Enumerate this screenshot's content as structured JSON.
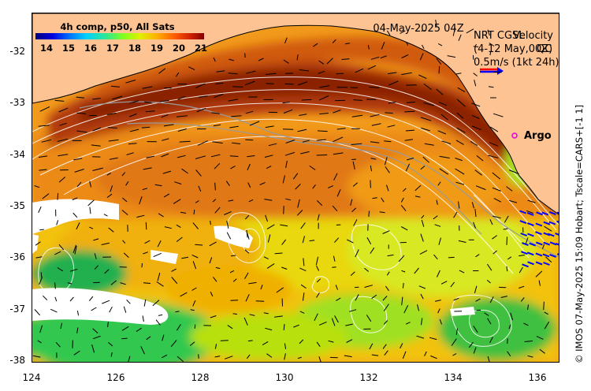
{
  "map": {
    "date_stamp": "04-May-2025 04Z",
    "colorbar": {
      "title": "4h comp, p50, All Sats",
      "ticks": [
        "14",
        "15",
        "16",
        "17",
        "18",
        "19",
        "20",
        "21"
      ],
      "stops": [
        "#00007f",
        "#0000e0",
        "#0070ff",
        "#00d0ff",
        "#30e890",
        "#80ff20",
        "#e0f000",
        "#ffb000",
        "#ff6000",
        "#d02000",
        "#800000"
      ]
    },
    "legend": {
      "line1": "NRT CGSL",
      "line1_overlap": "Velocity",
      "line2": "(4-12 May,00Z)",
      "line2_overlap": "QC",
      "line3": "0.5m/s (1kt 24h)",
      "arrow_colors": [
        "#ff0000",
        "#0000ff"
      ]
    },
    "argo_label": "Argo",
    "argo_color": "#e000e0",
    "y_axis": {
      "ticks": [
        "-32",
        "-33",
        "-34",
        "-35",
        "-36",
        "-37",
        "-38"
      ],
      "range": [
        -38.1,
        -31.3
      ]
    },
    "x_axis": {
      "ticks": [
        "124",
        "126",
        "128",
        "130",
        "132",
        "134",
        "136"
      ],
      "range": [
        124,
        136.5
      ]
    },
    "credit": "© IMOS 07-May-2025 15:09 Hobart; Tscale=CARS+[-1 1]",
    "colors": {
      "land": "#fdc392",
      "cloud": "#ffffff",
      "contour": "#ffffff",
      "velocity_arrow": "#000000",
      "blue_arrow": "#0000ff"
    }
  }
}
